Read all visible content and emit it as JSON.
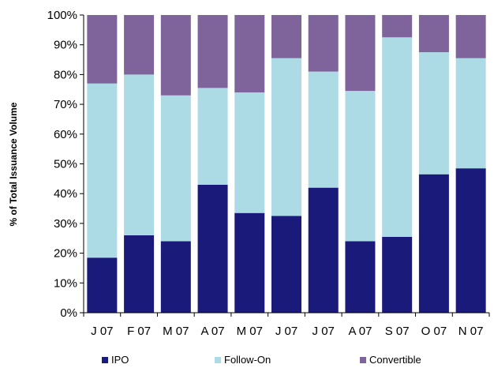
{
  "chart_data": {
    "type": "bar",
    "stacked": true,
    "normalized": true,
    "categories": [
      "J 07",
      "F 07",
      "M 07",
      "A 07",
      "M 07",
      "J 07",
      "J 07",
      "A 07",
      "S 07",
      "O 07",
      "N 07"
    ],
    "series": [
      {
        "name": "IPO",
        "color": "#1a1a7a",
        "values": [
          18.5,
          26,
          24,
          43,
          33.5,
          32.5,
          42,
          24,
          25.5,
          46.5,
          48.5
        ]
      },
      {
        "name": "Follow-On",
        "color": "#acdae5",
        "values": [
          58.5,
          54,
          49,
          32.5,
          40.5,
          53,
          39,
          50.5,
          67,
          41,
          37
        ]
      },
      {
        "name": "Convertible",
        "color": "#7f649b",
        "values": [
          23,
          20,
          27,
          24.5,
          26,
          14.5,
          19,
          25.5,
          7.5,
          12.5,
          14.5
        ]
      }
    ],
    "title": "",
    "xlabel": "",
    "ylabel": "% of Total Issuance Volume",
    "ylim": [
      0,
      100
    ],
    "yticks": [
      "0%",
      "10%",
      "20%",
      "30%",
      "40%",
      "50%",
      "60%",
      "70%",
      "80%",
      "90%",
      "100%"
    ],
    "grid": false,
    "legend_position": "bottom"
  }
}
